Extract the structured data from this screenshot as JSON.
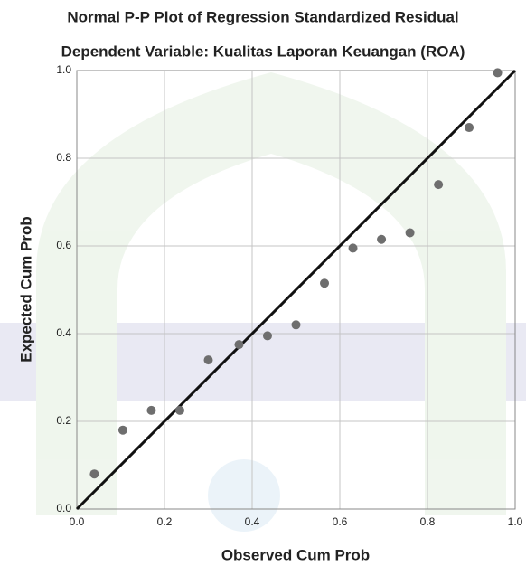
{
  "chart_data": {
    "type": "scatter",
    "title": "Normal P-P Plot of Regression Standardized Residual",
    "subtitle": "Dependent Variable: Kualitas Laporan Keuangan (ROA)",
    "x_label": "Observed Cum Prob",
    "y_label": "Expected Cum Prob",
    "x": [
      0.04,
      0.105,
      0.17,
      0.235,
      0.3,
      0.37,
      0.435,
      0.5,
      0.565,
      0.63,
      0.695,
      0.76,
      0.825,
      0.895,
      0.96
    ],
    "values": [
      0.08,
      0.18,
      0.225,
      0.225,
      0.34,
      0.375,
      0.395,
      0.42,
      0.515,
      0.595,
      0.615,
      0.63,
      0.74,
      0.87,
      0.995
    ],
    "color": "#6e6e6e",
    "xlim": [
      0,
      1
    ],
    "ylim": [
      0,
      1
    ],
    "xticks": [
      {
        "value": 0,
        "label": "0.0"
      },
      0.2,
      0.4,
      0.6,
      0.8,
      {
        "value": 1,
        "label": "1.0"
      }
    ],
    "yticks": [
      {
        "value": 0,
        "label": "0.0"
      },
      0.2,
      0.4,
      0.6,
      0.8,
      {
        "value": 1,
        "label": "1.0"
      }
    ],
    "grid": true,
    "reference_line": true
  }
}
